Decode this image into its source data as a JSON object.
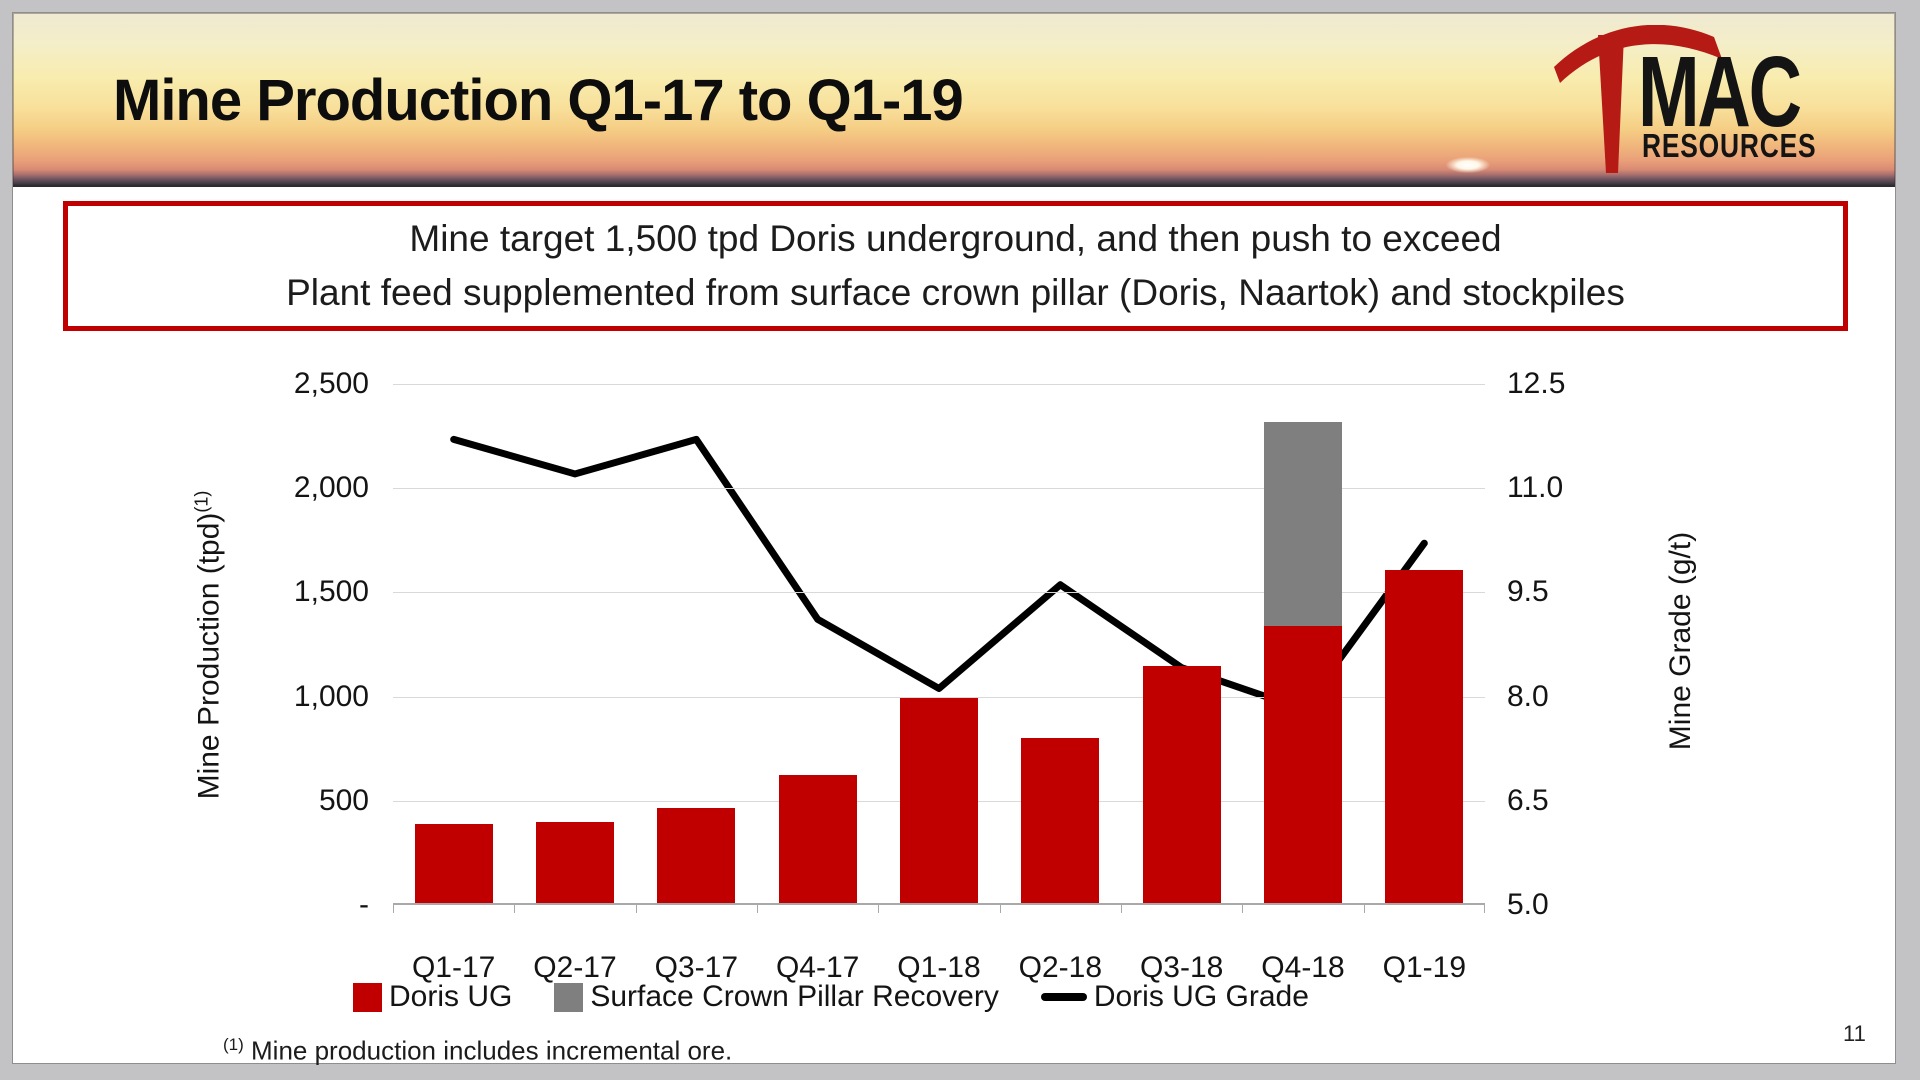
{
  "slide": {
    "title": "Mine Production Q1-17 to Q1-19",
    "callout_line1": "Mine target 1,500 tpd Doris underground, and then push to exceed",
    "callout_line2": "Plant feed supplemented from surface crown pillar (Doris, Naartok) and stockpiles",
    "footnote_marker": "(1)",
    "footnote_text": "Mine production includes incremental ore.",
    "page_number": "11"
  },
  "logo": {
    "mac": "MAC",
    "resources": "RESOURCES"
  },
  "colors": {
    "accent_red": "#C00000",
    "bar_gray": "#7F7F7F",
    "line_black": "#000000",
    "gridline_gray": "#D9D9D9"
  },
  "chart_data": {
    "type": "combo",
    "categories": [
      "Q1-17",
      "Q2-17",
      "Q3-17",
      "Q4-17",
      "Q1-18",
      "Q2-18",
      "Q3-18",
      "Q4-18",
      "Q1-19"
    ],
    "series": [
      {
        "name": "Doris UG",
        "type": "bar",
        "axis": "left",
        "color": "#C00000",
        "values": [
          380,
          390,
          455,
          615,
          985,
          790,
          1135,
          1330,
          1600
        ]
      },
      {
        "name": "Surface Crown Pillar Recovery",
        "type": "bar",
        "axis": "left",
        "stacked": true,
        "color": "#7F7F7F",
        "values": [
          0,
          0,
          0,
          0,
          0,
          0,
          0,
          980,
          0
        ]
      },
      {
        "name": "Doris UG Grade",
        "type": "line",
        "axis": "right",
        "color": "#000000",
        "values": [
          11.7,
          11.2,
          11.7,
          9.1,
          8.1,
          9.6,
          8.4,
          7.8,
          10.2
        ]
      }
    ],
    "left_axis": {
      "label": "Mine Production (tpd)",
      "label_superscript": "(1)",
      "min": 0,
      "max": 2500,
      "ticks": [
        "2,500",
        "2,000",
        "1,500",
        "1,000",
        "500",
        "-"
      ]
    },
    "right_axis": {
      "label": "Mine Grade (g/t)",
      "min": 5.0,
      "max": 12.5,
      "ticks": [
        "12.5",
        "11.0",
        "9.5",
        "8.0",
        "6.5",
        "5.0"
      ]
    },
    "grid": true,
    "legend_position": "bottom"
  }
}
